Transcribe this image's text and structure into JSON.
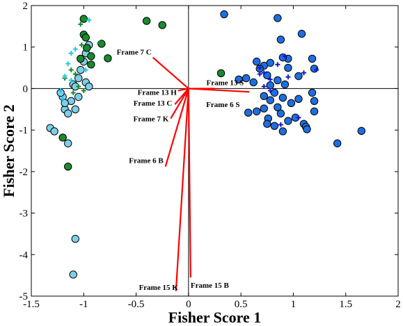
{
  "chart_data": {
    "type": "scatter",
    "title": "",
    "xlabel": "Fisher Score 1",
    "ylabel": "Fisher Score 2",
    "xlim": [
      -1.5,
      2
    ],
    "ylim": [
      -5,
      2
    ],
    "xticks": [
      -1.5,
      -1,
      -0.5,
      0,
      0.5,
      1,
      1.5,
      2
    ],
    "xtick_labels": [
      "-1.5",
      "-1",
      "-0.5",
      "0",
      "0.5",
      "1",
      "1.5",
      "2"
    ],
    "yticks": [
      -5,
      -4,
      -3,
      -2,
      -1,
      0,
      1,
      2
    ],
    "ytick_labels": [
      "-5",
      "-4",
      "-3",
      "-2",
      "-1",
      "0",
      "1",
      "2"
    ],
    "grid": false,
    "zero_lines": true,
    "series": [
      {
        "marker": "circle",
        "color": "#7fcfe8",
        "points": [
          [
            -1.32,
            -0.95
          ],
          [
            -1.28,
            -1.03
          ],
          [
            -1.15,
            -1.32
          ],
          [
            -1.08,
            -3.62
          ],
          [
            -1.1,
            -4.48
          ],
          [
            -1.18,
            -0.5
          ],
          [
            -1.15,
            -0.6
          ],
          [
            -1.2,
            -0.2
          ],
          [
            -1.22,
            -0.1
          ],
          [
            -1.12,
            -0.3
          ],
          [
            -1.08,
            -0.5
          ],
          [
            -1.05,
            -0.2
          ],
          [
            -1.1,
            0.1
          ],
          [
            -1.05,
            0.25
          ],
          [
            -1.03,
            0.45
          ],
          [
            -0.98,
            0.15
          ],
          [
            -0.95,
            0.05
          ],
          [
            -1.0,
            0.65
          ],
          [
            -0.98,
            0.85
          ],
          [
            -0.95,
            1.05
          ],
          [
            -1.08,
            0.05
          ],
          [
            -1.18,
            -0.35
          ]
        ]
      },
      {
        "marker": "circle",
        "color": "#1a8a2e",
        "points": [
          [
            -1.0,
            1.68
          ],
          [
            -1.0,
            1.3
          ],
          [
            -0.98,
            1.23
          ],
          [
            -0.83,
            1.08
          ],
          [
            -0.97,
            0.98
          ],
          [
            -0.93,
            0.78
          ],
          [
            -0.77,
            0.73
          ],
          [
            -1.03,
            0.72
          ],
          [
            -0.93,
            0.58
          ],
          [
            -0.4,
            1.63
          ],
          [
            -0.25,
            1.53
          ],
          [
            0.31,
            0.37
          ],
          [
            -1.2,
            -1.18
          ],
          [
            -1.15,
            -1.88
          ]
        ]
      },
      {
        "marker": "plus",
        "color": "#1a8a2e",
        "points": [
          [
            -1.03,
            1.55
          ],
          [
            -1.02,
            1.05
          ],
          [
            -0.85,
            1.1
          ],
          [
            -1.12,
            0.45
          ],
          [
            -1.08,
            0.35
          ],
          [
            -1.18,
            0.25
          ],
          [
            -1.05,
            0.05
          ],
          [
            -1.0,
            -0.05
          ],
          [
            -1.1,
            -0.1
          ]
        ]
      },
      {
        "marker": "plus",
        "color": "#27c6ee",
        "points": [
          [
            -0.95,
            1.65
          ],
          [
            -1.08,
            0.95
          ],
          [
            -1.12,
            0.85
          ],
          [
            -1.15,
            0.6
          ],
          [
            -1.18,
            0.3
          ],
          [
            -1.12,
            0.2
          ],
          [
            -1.22,
            -0.05
          ],
          [
            -1.2,
            -0.25
          ],
          [
            -0.98,
            0.45
          ]
        ]
      },
      {
        "marker": "circle",
        "color": "#1f6ee0",
        "points": [
          [
            0.34,
            1.79
          ],
          [
            0.85,
            1.7
          ],
          [
            0.88,
            1.18
          ],
          [
            1.08,
            1.32
          ],
          [
            0.95,
            0.72
          ],
          [
            0.9,
            0.75
          ],
          [
            0.78,
            0.62
          ],
          [
            0.72,
            0.55
          ],
          [
            0.65,
            0.65
          ],
          [
            0.68,
            0.48
          ],
          [
            0.95,
            0.5
          ],
          [
            1.18,
            0.72
          ],
          [
            1.2,
            0.48
          ],
          [
            0.75,
            0.32
          ],
          [
            0.55,
            0.25
          ],
          [
            0.48,
            0.22
          ],
          [
            0.62,
            0.15
          ],
          [
            0.85,
            0.2
          ],
          [
            0.92,
            0.1
          ],
          [
            0.78,
            0.08
          ],
          [
            1.05,
            0.3
          ],
          [
            0.82,
            -0.1
          ],
          [
            0.9,
            -0.22
          ],
          [
            0.78,
            -0.28
          ],
          [
            0.72,
            -0.18
          ],
          [
            0.98,
            -0.35
          ],
          [
            1.05,
            -0.25
          ],
          [
            1.18,
            -0.1
          ],
          [
            1.2,
            -0.3
          ],
          [
            0.88,
            -0.6
          ],
          [
            0.85,
            -0.45
          ],
          [
            0.72,
            -0.48
          ],
          [
            0.76,
            -0.72
          ],
          [
            0.95,
            -0.78
          ],
          [
            1.02,
            -0.7
          ],
          [
            1.1,
            -0.85
          ],
          [
            1.12,
            -0.92
          ],
          [
            0.82,
            -0.9
          ],
          [
            0.75,
            -0.85
          ],
          [
            0.65,
            -0.55
          ],
          [
            0.57,
            -0.58
          ],
          [
            0.9,
            -1.03
          ],
          [
            1.42,
            -1.32
          ],
          [
            1.65,
            -1.02
          ],
          [
            1.2,
            -0.55
          ],
          [
            1.13,
            -0.98
          ]
        ]
      },
      {
        "marker": "plus",
        "color": "#1818c8",
        "points": [
          [
            0.92,
            0.78
          ],
          [
            0.85,
            0.58
          ],
          [
            0.68,
            0.5
          ],
          [
            0.72,
            0.38
          ],
          [
            0.95,
            0.28
          ],
          [
            0.72,
            0.05
          ],
          [
            1.1,
            0.38
          ],
          [
            0.78,
            0.22
          ],
          [
            1.05,
            -0.7
          ],
          [
            0.88,
            -0.87
          ],
          [
            0.78,
            -0.05
          ],
          [
            1.22,
            0.45
          ],
          [
            0.68,
            0.35
          ]
        ]
      }
    ],
    "vectors": [
      {
        "label": "Frame 7 C",
        "end": [
          -0.34,
          0.75
        ]
      },
      {
        "label": "Frame 13 H",
        "end": [
          -0.1,
          -0.05
        ]
      },
      {
        "label": "Frame 13 S",
        "end": [
          0.25,
          0.0
        ]
      },
      {
        "label": "Frame 6 S",
        "end": [
          0.58,
          -0.08
        ]
      },
      {
        "label": "Frame 13 C",
        "end": [
          -0.13,
          -0.38
        ]
      },
      {
        "label": "Frame 7 K",
        "end": [
          -0.17,
          -0.72
        ]
      },
      {
        "label": "Frame 6 B",
        "end": [
          -0.22,
          -1.88
        ]
      },
      {
        "label": "Frame 15 B",
        "end": [
          0.02,
          -4.55
        ]
      },
      {
        "label": "Frame 15 K",
        "end": [
          -0.12,
          -4.88
        ]
      }
    ],
    "vector_color": "#ff0000"
  }
}
